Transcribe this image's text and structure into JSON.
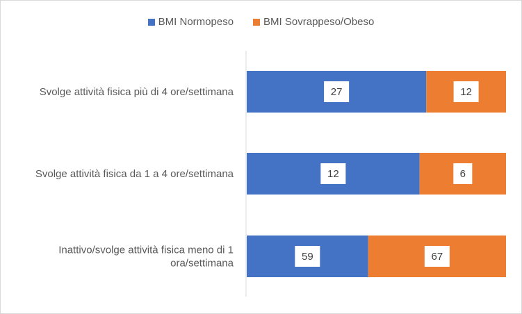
{
  "chart_data": {
    "type": "bar",
    "orientation": "horizontal",
    "stacked": "percent",
    "categories": [
      [
        "Svolge attività fisica più di 4 ore/settimana"
      ],
      [
        "Svolge attività fisica da 1 a 4 ore/settimana"
      ],
      [
        "Inattivo/svolge attività fisica meno di 1",
        "ora/settimana"
      ]
    ],
    "series": [
      {
        "name": "BMI Normopeso",
        "color": "#4472c4",
        "values": [
          27,
          12,
          59
        ]
      },
      {
        "name": "BMI Sovrappeso/Obeso",
        "color": "#ed7d31",
        "values": [
          12,
          6,
          67
        ]
      }
    ],
    "legend_position": "top",
    "grid": false,
    "data_labels": true
  }
}
